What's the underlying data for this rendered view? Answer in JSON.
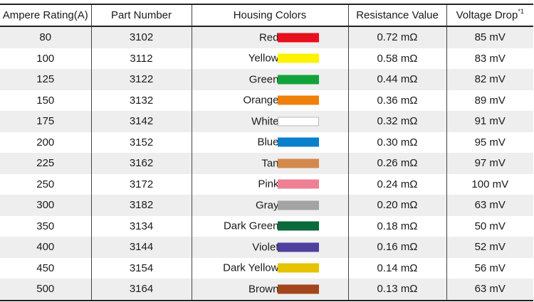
{
  "table": {
    "headers": {
      "ampere": "Ampere Rating(A)",
      "part": "Part Number",
      "colors": "Housing Colors",
      "resistance": "Resistance Value",
      "voltage": "Voltage Drop",
      "voltage_note": "*1"
    },
    "rows": [
      {
        "ampere": "80",
        "part": "3102",
        "color_name": "Red",
        "swatch": "#e8101c",
        "resistance": "0.72 mΩ",
        "voltage": "85 mV"
      },
      {
        "ampere": "100",
        "part": "3112",
        "color_name": "Yellow",
        "swatch": "#fff200",
        "resistance": "0.58 mΩ",
        "voltage": "83 mV"
      },
      {
        "ampere": "125",
        "part": "3122",
        "color_name": "Green",
        "swatch": "#12a33a",
        "resistance": "0.44 mΩ",
        "voltage": "82 mV"
      },
      {
        "ampere": "150",
        "part": "3132",
        "color_name": "Orange",
        "swatch": "#f0800a",
        "resistance": "0.36 mΩ",
        "voltage": "89 mV"
      },
      {
        "ampere": "175",
        "part": "3142",
        "color_name": "White",
        "swatch": "#ffffff",
        "resistance": "0.32 mΩ",
        "voltage": "91 mV"
      },
      {
        "ampere": "200",
        "part": "3152",
        "color_name": "Blue",
        "swatch": "#0a80cc",
        "resistance": "0.30 mΩ",
        "voltage": "95 mV"
      },
      {
        "ampere": "225",
        "part": "3162",
        "color_name": "Tan",
        "swatch": "#d4894c",
        "resistance": "0.26 mΩ",
        "voltage": "97 mV"
      },
      {
        "ampere": "250",
        "part": "3172",
        "color_name": "Pink",
        "swatch": "#ee8095",
        "resistance": "0.24 mΩ",
        "voltage": "100 mV"
      },
      {
        "ampere": "300",
        "part": "3182",
        "color_name": "Gray",
        "swatch": "#a3a3a3",
        "resistance": "0.20 mΩ",
        "voltage": "63 mV"
      },
      {
        "ampere": "350",
        "part": "3134",
        "color_name": "Dark Green",
        "swatch": "#0a6a3a",
        "resistance": "0.18 mΩ",
        "voltage": "50 mV"
      },
      {
        "ampere": "400",
        "part": "3144",
        "color_name": "Violet",
        "swatch": "#4f3f9f",
        "resistance": "0.16 mΩ",
        "voltage": "52 mV"
      },
      {
        "ampere": "450",
        "part": "3154",
        "color_name": "Dark Yellow",
        "swatch": "#e6c300",
        "resistance": "0.14 mΩ",
        "voltage": "56 mV"
      },
      {
        "ampere": "500",
        "part": "3164",
        "color_name": "Brown",
        "swatch": "#a3461b",
        "resistance": "0.13 mΩ",
        "voltage": "63 mV"
      }
    ]
  }
}
